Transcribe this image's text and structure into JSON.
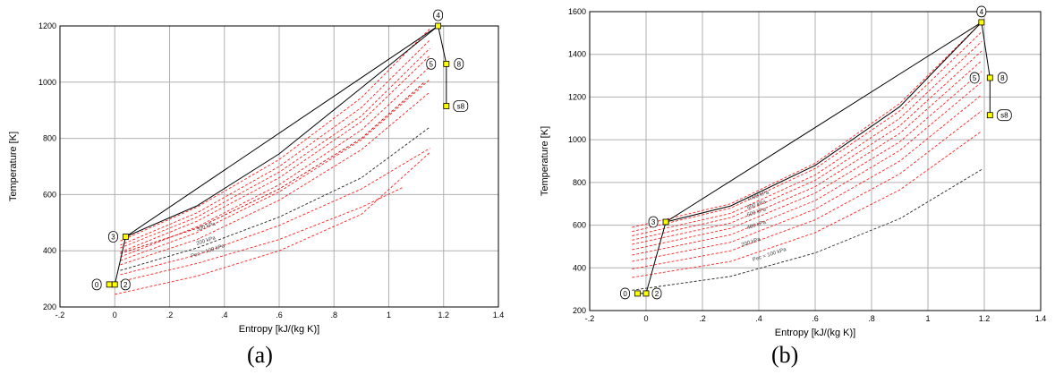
{
  "chart_data": [
    {
      "type": "line",
      "panel_label": "(a)",
      "xlabel": "Entropy [kJ/(kg K)]",
      "ylabel": "Temperature [K]",
      "xlim": [
        -0.2,
        1.4
      ],
      "ylim": [
        200,
        1200
      ],
      "x_tick_labels": [
        "-.2",
        "0",
        ".2",
        ".4",
        ".6",
        ".8",
        "1",
        "1.2",
        "1.4"
      ],
      "y_ticks": [
        200,
        400,
        600,
        800,
        1000,
        1200
      ],
      "grid": true,
      "isobar_labels": [
        "300 kPa",
        "200 kPa",
        "Pec = 100 kPa"
      ],
      "isobars": [
        {
          "color": "#cc0000",
          "dashed": true,
          "points": [
            [
              0.02,
              390
            ],
            [
              0.3,
              480
            ],
            [
              0.6,
              620
            ],
            [
              0.9,
              800
            ],
            [
              1.13,
              1000
            ]
          ]
        },
        {
          "color": "#ff2020",
          "dashed": true,
          "points": [
            [
              0.02,
              410
            ],
            [
              0.3,
              520
            ],
            [
              0.6,
              680
            ],
            [
              0.9,
              880
            ],
            [
              1.15,
              1120
            ]
          ]
        },
        {
          "color": "#ff2020",
          "dashed": true,
          "points": [
            [
              0.02,
              420
            ],
            [
              0.3,
              535
            ],
            [
              0.6,
              700
            ],
            [
              0.9,
              910
            ],
            [
              1.15,
              1150
            ]
          ]
        },
        {
          "color": "#ff2020",
          "dashed": true,
          "points": [
            [
              0.02,
              435
            ],
            [
              0.3,
              555
            ],
            [
              0.6,
              725
            ],
            [
              0.9,
              945
            ],
            [
              1.15,
              1190
            ]
          ]
        },
        {
          "color": "#ff2020",
          "dashed": true,
          "points": [
            [
              0.02,
              350
            ],
            [
              0.3,
              440
            ],
            [
              0.6,
              580
            ],
            [
              0.9,
              760
            ],
            [
              1.15,
              965
            ]
          ]
        },
        {
          "color": "#ff2020",
          "dashed": true,
          "points": [
            [
              0.02,
              365
            ],
            [
              0.3,
              465
            ],
            [
              0.6,
              610
            ],
            [
              0.9,
              795
            ],
            [
              1.15,
              1010
            ]
          ]
        },
        {
          "color": "#ff2020",
          "dashed": true,
          "points": [
            [
              0.02,
              378
            ],
            [
              0.3,
              485
            ],
            [
              0.6,
              635
            ],
            [
              0.9,
              830
            ],
            [
              1.15,
              1055
            ]
          ]
        },
        {
          "color": "#ff2020",
          "dashed": true,
          "points": [
            [
              0.02,
              395
            ],
            [
              0.3,
              505
            ],
            [
              0.6,
              660
            ],
            [
              0.9,
              860
            ],
            [
              1.15,
              1095
            ]
          ]
        },
        {
          "color": "#ff2020",
          "dashed": true,
          "points": [
            [
              0.02,
              315
            ],
            [
              0.3,
              385
            ],
            [
              0.6,
              490
            ],
            [
              0.9,
              620
            ],
            [
              1.15,
              765
            ]
          ]
        },
        {
          "color": "#ff2020",
          "dashed": true,
          "points": [
            [
              0.02,
              290
            ],
            [
              0.3,
              355
            ],
            [
              0.6,
              440
            ],
            [
              0.9,
              555
            ],
            [
              1.05,
              625
            ]
          ]
        },
        {
          "color": "#ff2020",
          "dashed": true,
          "points": [
            [
              0.0,
              245
            ],
            [
              0.3,
              310
            ],
            [
              0.6,
              400
            ],
            [
              0.9,
              530
            ],
            [
              1.15,
              750
            ]
          ]
        },
        {
          "color": "#222222",
          "dashed": true,
          "points": [
            [
              0.02,
              330
            ],
            [
              0.3,
              410
            ],
            [
              0.6,
              520
            ],
            [
              0.9,
              660
            ],
            [
              1.15,
              840
            ]
          ]
        },
        {
          "color": "#000000",
          "dashed": false,
          "points": [
            [
              0.04,
              450
            ],
            [
              0.3,
              560
            ],
            [
              0.6,
              745
            ],
            [
              0.9,
              980
            ],
            [
              1.18,
              1200
            ]
          ]
        }
      ],
      "cycle_path": [
        [
          -0.02,
          280
        ],
        [
          0.0,
          280
        ],
        [
          0.04,
          450
        ],
        [
          1.18,
          1200
        ],
        [
          1.21,
          1065
        ],
        [
          1.21,
          915
        ]
      ],
      "states": [
        {
          "label": "0",
          "s": -0.02,
          "T": 280
        },
        {
          "label": "2",
          "s": 0.0,
          "T": 280
        },
        {
          "label": "3",
          "s": 0.04,
          "T": 450
        },
        {
          "label": "4",
          "s": 1.18,
          "T": 1200
        },
        {
          "label": "5",
          "s": 1.2,
          "T": 1065
        },
        {
          "label": "8",
          "s": 1.21,
          "T": 1065
        },
        {
          "label": "s8",
          "s": 1.21,
          "T": 915
        }
      ]
    },
    {
      "type": "line",
      "panel_label": "(b)",
      "xlabel": "Entropy [kJ/(kg K)]",
      "ylabel": "Temperature [K]",
      "xlim": [
        -0.2,
        1.4
      ],
      "ylim": [
        200,
        1600
      ],
      "x_tick_labels": [
        "-.2",
        "0",
        ".2",
        ".4",
        ".6",
        ".8",
        "1",
        "1.2",
        "1.4"
      ],
      "y_ticks": [
        200,
        400,
        600,
        800,
        1000,
        1200,
        1400,
        1600
      ],
      "grid": true,
      "isobar_labels": [
        "1000 kPa",
        "800 kPa",
        "600 kPa",
        "400 kPa",
        "200 kPa",
        "Pec = 100 kPa"
      ],
      "isobars": [
        {
          "color": "#ff2020",
          "dashed": true,
          "points": [
            [
              -0.05,
              590
            ],
            [
              0.3,
              700
            ],
            [
              0.6,
              890
            ],
            [
              0.9,
              1170
            ],
            [
              1.19,
              1550
            ]
          ]
        },
        {
          "color": "#ff2020",
          "dashed": true,
          "points": [
            [
              -0.05,
              570
            ],
            [
              0.3,
              680
            ],
            [
              0.6,
              865
            ],
            [
              0.9,
              1135
            ],
            [
              1.19,
              1505
            ]
          ]
        },
        {
          "color": "#ff2020",
          "dashed": true,
          "points": [
            [
              -0.05,
              550
            ],
            [
              0.3,
              655
            ],
            [
              0.6,
              835
            ],
            [
              0.9,
              1100
            ],
            [
              1.19,
              1460
            ]
          ]
        },
        {
          "color": "#ff2020",
          "dashed": true,
          "points": [
            [
              -0.05,
              530
            ],
            [
              0.3,
              635
            ],
            [
              0.6,
              810
            ],
            [
              0.9,
              1065
            ],
            [
              1.19,
              1415
            ]
          ]
        },
        {
          "color": "#ff2020",
          "dashed": true,
          "points": [
            [
              -0.05,
              510
            ],
            [
              0.3,
              610
            ],
            [
              0.6,
              780
            ],
            [
              0.9,
              1030
            ],
            [
              1.19,
              1370
            ]
          ]
        },
        {
          "color": "#ff2020",
          "dashed": true,
          "points": [
            [
              -0.05,
              485
            ],
            [
              0.3,
              585
            ],
            [
              0.6,
              750
            ],
            [
              0.9,
              990
            ],
            [
              1.19,
              1320
            ]
          ]
        },
        {
          "color": "#ff2020",
          "dashed": true,
          "points": [
            [
              -0.05,
              460
            ],
            [
              0.3,
              555
            ],
            [
              0.6,
              715
            ],
            [
              0.9,
              950
            ],
            [
              1.19,
              1270
            ]
          ]
        },
        {
          "color": "#ff2020",
          "dashed": true,
          "points": [
            [
              -0.05,
              430
            ],
            [
              0.3,
              520
            ],
            [
              0.6,
              675
            ],
            [
              0.9,
              900
            ],
            [
              1.19,
              1210
            ]
          ]
        },
        {
          "color": "#ff2020",
          "dashed": true,
          "points": [
            [
              -0.05,
              395
            ],
            [
              0.3,
              480
            ],
            [
              0.6,
              625
            ],
            [
              0.9,
              840
            ],
            [
              1.19,
              1135
            ]
          ]
        },
        {
          "color": "#ff2020",
          "dashed": true,
          "points": [
            [
              -0.05,
              355
            ],
            [
              0.3,
              430
            ],
            [
              0.6,
              565
            ],
            [
              0.9,
              765
            ],
            [
              1.19,
              1040
            ]
          ]
        },
        {
          "color": "#222222",
          "dashed": true,
          "points": [
            [
              -0.05,
              295
            ],
            [
              0.3,
              360
            ],
            [
              0.6,
              470
            ],
            [
              0.9,
              630
            ],
            [
              1.19,
              860
            ]
          ]
        },
        {
          "color": "#000000",
          "dashed": false,
          "points": [
            [
              0.07,
              615
            ],
            [
              0.3,
              690
            ],
            [
              0.6,
              880
            ],
            [
              0.9,
              1155
            ],
            [
              1.19,
              1550
            ]
          ]
        }
      ],
      "cycle_path": [
        [
          -0.03,
          280
        ],
        [
          0.0,
          280
        ],
        [
          0.07,
          615
        ],
        [
          1.19,
          1550
        ],
        [
          1.22,
          1290
        ],
        [
          1.22,
          1115
        ]
      ],
      "states": [
        {
          "label": "0",
          "s": -0.03,
          "T": 280
        },
        {
          "label": "2",
          "s": 0.0,
          "T": 280
        },
        {
          "label": "3",
          "s": 0.07,
          "T": 615
        },
        {
          "label": "4",
          "s": 1.19,
          "T": 1550
        },
        {
          "label": "5",
          "s": 1.21,
          "T": 1290
        },
        {
          "label": "8",
          "s": 1.22,
          "T": 1290
        },
        {
          "label": "s8",
          "s": 1.22,
          "T": 1115
        }
      ]
    }
  ]
}
